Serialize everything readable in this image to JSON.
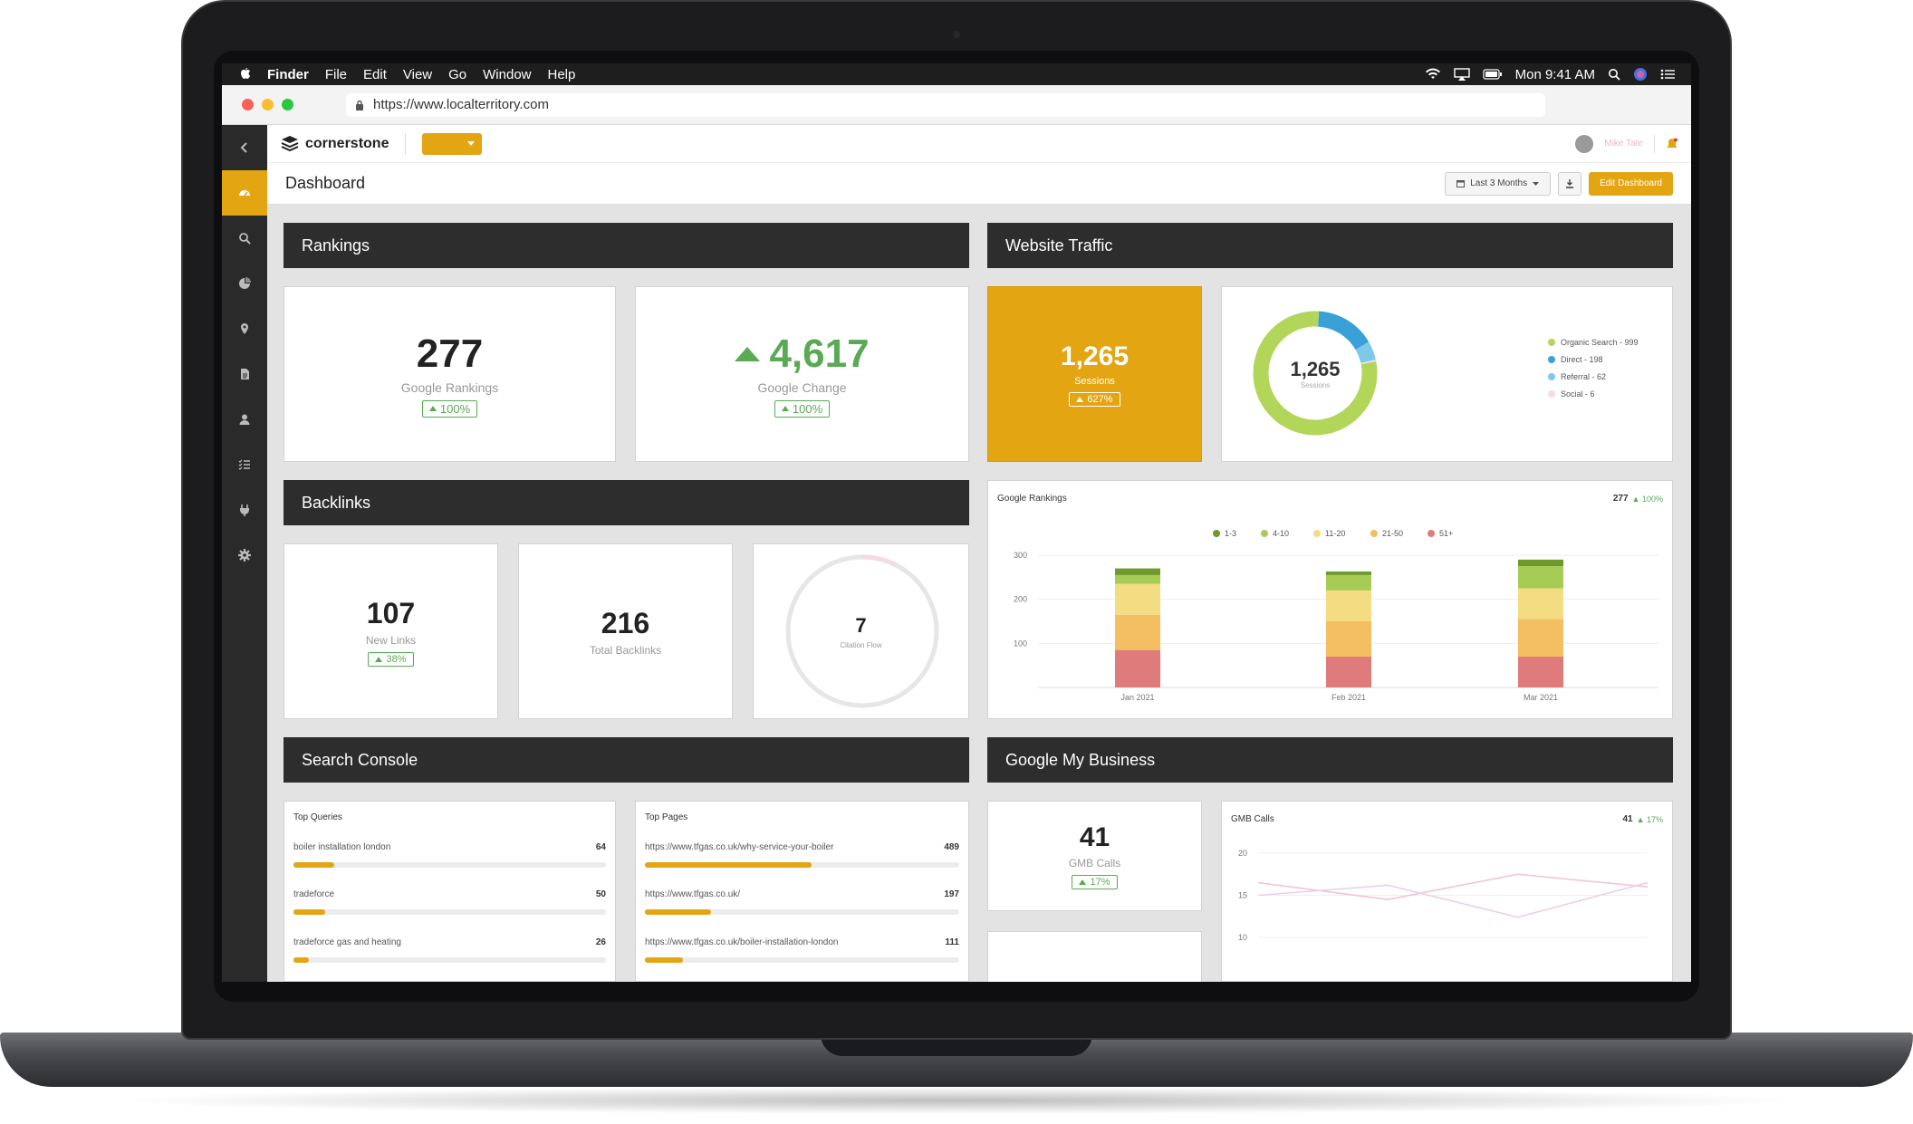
{
  "menubar": {
    "app": "Finder",
    "items": [
      "File",
      "Edit",
      "View",
      "Go",
      "Window",
      "Help"
    ],
    "clock": "Mon 9:41 AM"
  },
  "browser": {
    "url": "https://www.localterritory.com"
  },
  "app": {
    "logo_text": "cornerstone",
    "user_name": "Mike Tate",
    "sidebar": [
      "dashboard",
      "search",
      "reports",
      "locations",
      "documents",
      "users",
      "tasks",
      "integrations",
      "settings"
    ]
  },
  "subheader": {
    "title": "Dashboard",
    "range_label": "Last 3 Months",
    "edit_label": "Edit Dashboard"
  },
  "sections": {
    "rankings": "Rankings",
    "traffic": "Website Traffic",
    "backlinks": "Backlinks",
    "search_console": "Search Console",
    "gmb": "Google My Business"
  },
  "rankings": {
    "google_rankings": {
      "value": "277",
      "label": "Google Rankings",
      "change": "100%"
    },
    "google_change": {
      "value": "4,617",
      "label": "Google Change",
      "change": "100%"
    }
  },
  "traffic": {
    "sessions": {
      "value": "1,265",
      "label": "Sessions",
      "change": "627%"
    },
    "donut": {
      "center_value": "1,265",
      "center_label": "Sessions",
      "legend": [
        {
          "label": "Organic Search - 999",
          "value": 999,
          "color": "#b2d65a"
        },
        {
          "label": "Direct - 198",
          "value": 198,
          "color": "#3aa0d8"
        },
        {
          "label": "Referral - 62",
          "value": 62,
          "color": "#7ec8ea"
        },
        {
          "label": "Social - 6",
          "value": 6,
          "color": "#f6dbe4"
        }
      ]
    }
  },
  "backlinks": {
    "new_links": {
      "value": "107",
      "label": "New Links",
      "change": "38%"
    },
    "total": {
      "value": "216",
      "label": "Total Backlinks"
    },
    "citation": {
      "value": "7",
      "label": "Citation Flow"
    }
  },
  "rank_chart": {
    "title": "Google Rankings",
    "total": "277",
    "change": "100%"
  },
  "chart_data": [
    {
      "type": "bar",
      "title": "Google Rankings",
      "stacked": true,
      "categories": [
        "Jan 2021",
        "Feb 2021",
        "Mar 2021"
      ],
      "series": [
        {
          "name": "51+",
          "color": "#e07b7b",
          "values": [
            85,
            70,
            70
          ]
        },
        {
          "name": "21-50",
          "color": "#f4be62",
          "values": [
            80,
            80,
            85
          ]
        },
        {
          "name": "11-20",
          "color": "#f4dc82",
          "values": [
            70,
            70,
            70
          ]
        },
        {
          "name": "4-10",
          "color": "#a6cc55",
          "values": [
            20,
            35,
            50
          ]
        },
        {
          "name": "1-3",
          "color": "#6d9a2a",
          "values": [
            15,
            8,
            15
          ]
        }
      ],
      "yticks": [
        100,
        200,
        300
      ],
      "ylim": [
        0,
        300
      ],
      "legend_position": "top-center"
    },
    {
      "type": "line",
      "title": "GMB Calls",
      "yticks": [
        10,
        15,
        20
      ],
      "ylim": [
        10,
        20
      ],
      "series": [
        {
          "color": "#f2c4d4",
          "values": [
            16.5,
            14.5,
            17.5,
            16
          ]
        },
        {
          "color": "#ead0e8",
          "values": [
            15,
            16.2,
            12.4,
            16.5
          ]
        }
      ]
    }
  ],
  "search_console": {
    "queries_title": "Top Queries",
    "queries": [
      {
        "text": "boiler installation london",
        "value": "64",
        "fill": 0.13
      },
      {
        "text": "tradeforce",
        "value": "50",
        "fill": 0.1
      },
      {
        "text": "tradeforce gas and heating",
        "value": "26",
        "fill": 0.05
      }
    ],
    "pages_title": "Top Pages",
    "pages": [
      {
        "text": "https://www.tfgas.co.uk/why-service-your-boiler",
        "value": "489",
        "fill": 0.53
      },
      {
        "text": "https://www.tfgas.co.uk/",
        "value": "197",
        "fill": 0.21
      },
      {
        "text": "https://www.tfgas.co.uk/boiler-installation-london",
        "value": "111",
        "fill": 0.12
      }
    ]
  },
  "gmb": {
    "calls": {
      "value": "41",
      "label": "GMB Calls",
      "change": "17%"
    },
    "chart_title": "GMB Calls",
    "chart_total": "41",
    "chart_change": "17%"
  },
  "colors": {
    "accent": "#e3a512",
    "success": "#5aaa55",
    "dark_panel": "#2d2d2d"
  }
}
